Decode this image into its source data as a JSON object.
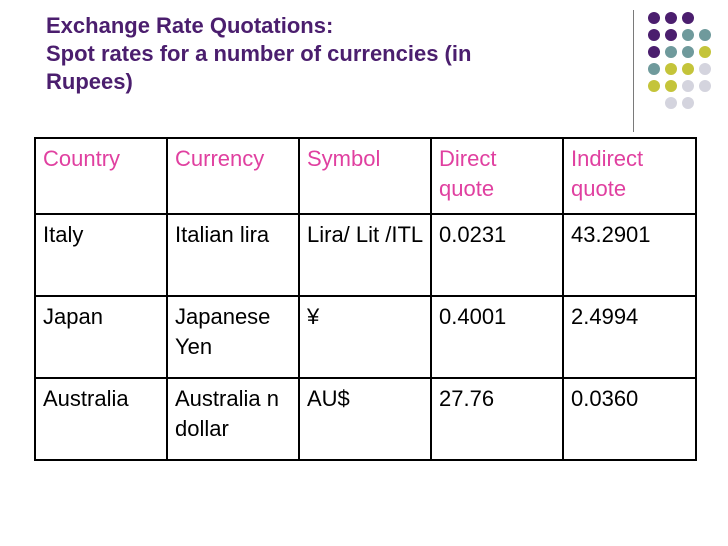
{
  "title": {
    "line1": "Exchange Rate Quotations:",
    "line2": "Spot rates for a number of currencies (in",
    "line3": "Rupees)"
  },
  "colors": {
    "title": "#4b1e6e",
    "header_text": "#e040a0",
    "dot_purple": "#4b1e6e",
    "dot_teal": "#6f9a9c",
    "dot_olive": "#c4c43a",
    "dot_gray": "#d4d4de"
  },
  "table": {
    "headers": [
      "Country",
      "Currency",
      "Symbol",
      "Direct quote",
      "Indirect quote"
    ],
    "rows": [
      [
        "Italy",
        "Italian lira",
        "Lira/ Lit /ITL",
        "0.0231",
        "43.2901"
      ],
      [
        "Japan",
        "Japanese Yen",
        "¥",
        "0.4001",
        "2.4994"
      ],
      [
        "Australia",
        "Australia n dollar",
        "AU$",
        "27.76",
        "0.0360"
      ]
    ]
  }
}
